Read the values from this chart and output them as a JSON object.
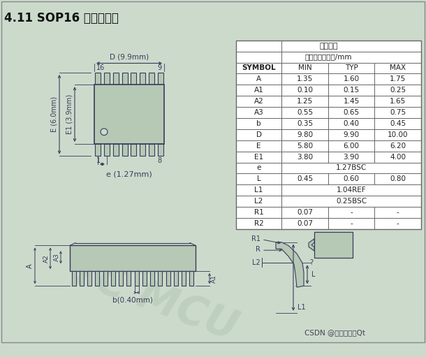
{
  "title": "4.11 SOP16 封装尺寸图",
  "bg_color": "#ccdacc",
  "table_header1": "一般尺寸",
  "table_header2": "测量单位：毫米/mm",
  "table_cols": [
    "SYMBOL",
    "MIN",
    "TYP",
    "MAX"
  ],
  "table_data": [
    [
      "A",
      "1.35",
      "1.60",
      "1.75"
    ],
    [
      "A1",
      "0.10",
      "0.15",
      "0.25"
    ],
    [
      "A2",
      "1.25",
      "1.45",
      "1.65"
    ],
    [
      "A3",
      "0.55",
      "0.65",
      "0.75"
    ],
    [
      "b",
      "0.35",
      "0.40",
      "0.45"
    ],
    [
      "D",
      "9.80",
      "9.90",
      "10.00"
    ],
    [
      "E",
      "5.80",
      "6.00",
      "6.20"
    ],
    [
      "E1",
      "3.80",
      "3.90",
      "4.00"
    ],
    [
      "e",
      "1.27BSC",
      "",
      ""
    ],
    [
      "L",
      "0.45",
      "0.60",
      "0.80"
    ],
    [
      "L1",
      "1.04REF",
      "",
      ""
    ],
    [
      "L2",
      "0.25BSC",
      "",
      ""
    ],
    [
      "R1",
      "0.07",
      "-",
      "-"
    ],
    [
      "R2",
      "0.07",
      "-",
      "-"
    ]
  ],
  "watermark": "TC MCU",
  "credit": "CSDN @长沙红胖子Qt",
  "chip_color": "#b5c9b5",
  "line_color": "#3a3a5a",
  "table_border": "#666666",
  "table_bg": "#ffffff",
  "bg_rect_color": "#c8d8c8"
}
